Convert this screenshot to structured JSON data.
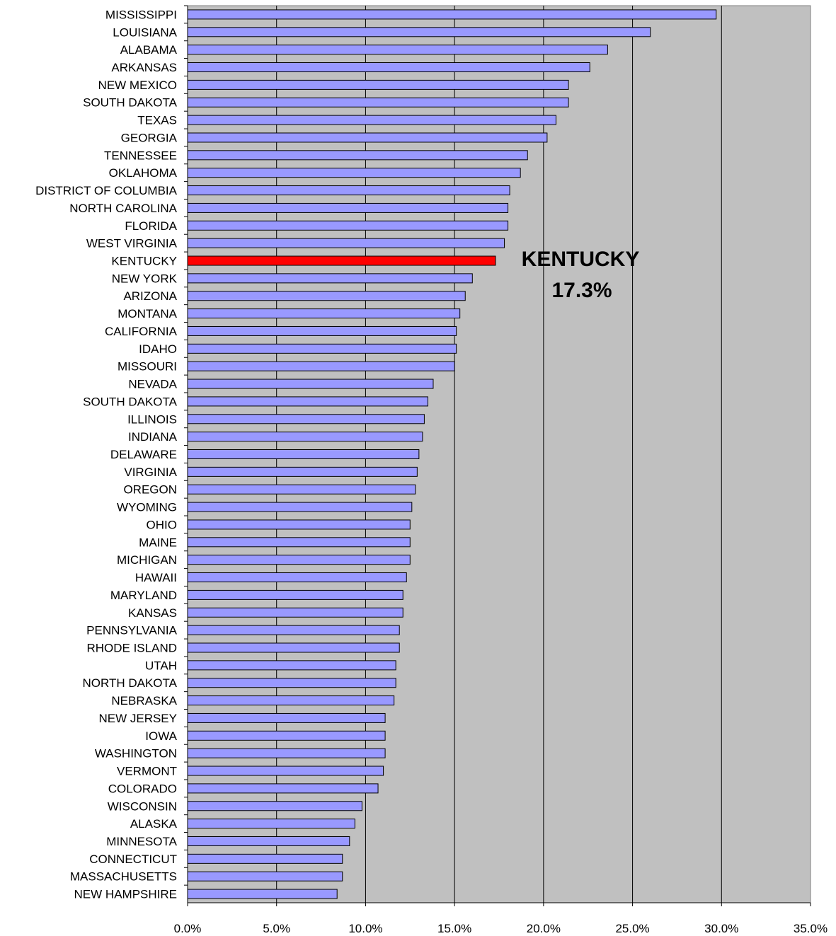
{
  "chart_data": {
    "type": "bar",
    "orientation": "horizontal",
    "categories": [
      "MISSISSIPPI",
      "LOUISIANA",
      "ALABAMA",
      "ARKANSAS",
      "NEW MEXICO",
      "SOUTH DAKOTA",
      "TEXAS",
      "GEORGIA",
      "TENNESSEE",
      "OKLAHOMA",
      "DISTRICT OF COLUMBIA",
      "NORTH CAROLINA",
      "FLORIDA",
      "WEST VIRGINIA",
      "KENTUCKY",
      "NEW YORK",
      "ARIZONA",
      "MONTANA",
      "CALIFORNIA",
      "IDAHO",
      "MISSOURI",
      "NEVADA",
      "SOUTH DAKOTA",
      "ILLINOIS",
      "INDIANA",
      "DELAWARE",
      "VIRGINIA",
      "OREGON",
      "WYOMING",
      "OHIO",
      "MAINE",
      "MICHIGAN",
      "HAWAII",
      "MARYLAND",
      "KANSAS",
      "PENNSYLVANIA",
      "RHODE ISLAND",
      "UTAH",
      "NORTH DAKOTA",
      "NEBRASKA",
      "NEW JERSEY",
      "IOWA",
      "WASHINGTON",
      "VERMONT",
      "COLORADO",
      "WISCONSIN",
      "ALASKA",
      "MINNESOTA",
      "CONNECTICUT",
      "MASSACHUSETTS",
      "NEW HAMPSHIRE"
    ],
    "values": [
      29.7,
      26.0,
      23.6,
      22.6,
      21.4,
      21.4,
      20.7,
      20.2,
      19.1,
      18.7,
      18.1,
      18.0,
      18.0,
      17.8,
      17.3,
      16.0,
      15.6,
      15.3,
      15.1,
      15.1,
      15.0,
      13.8,
      13.5,
      13.3,
      13.2,
      13.0,
      12.9,
      12.8,
      12.6,
      12.5,
      12.5,
      12.5,
      12.3,
      12.1,
      12.1,
      11.9,
      11.9,
      11.7,
      11.7,
      11.6,
      11.1,
      11.1,
      11.1,
      11.0,
      10.7,
      9.8,
      9.4,
      9.1,
      8.7,
      8.7,
      8.4
    ],
    "highlight_index": 14,
    "xlim": [
      0,
      35
    ],
    "xticks": [
      "0.0%",
      "5.0%",
      "10.0%",
      "15.0%",
      "20.0%",
      "25.0%",
      "30.0%",
      "35.0%"
    ],
    "grid": true,
    "colors": {
      "bar": "#9999ff",
      "highlight": "#ff0000",
      "plot_background": "#c0c0c0",
      "bar_border": "#000000"
    },
    "annotation": {
      "line1": "KENTUCKY",
      "line2": "17.3%"
    }
  }
}
